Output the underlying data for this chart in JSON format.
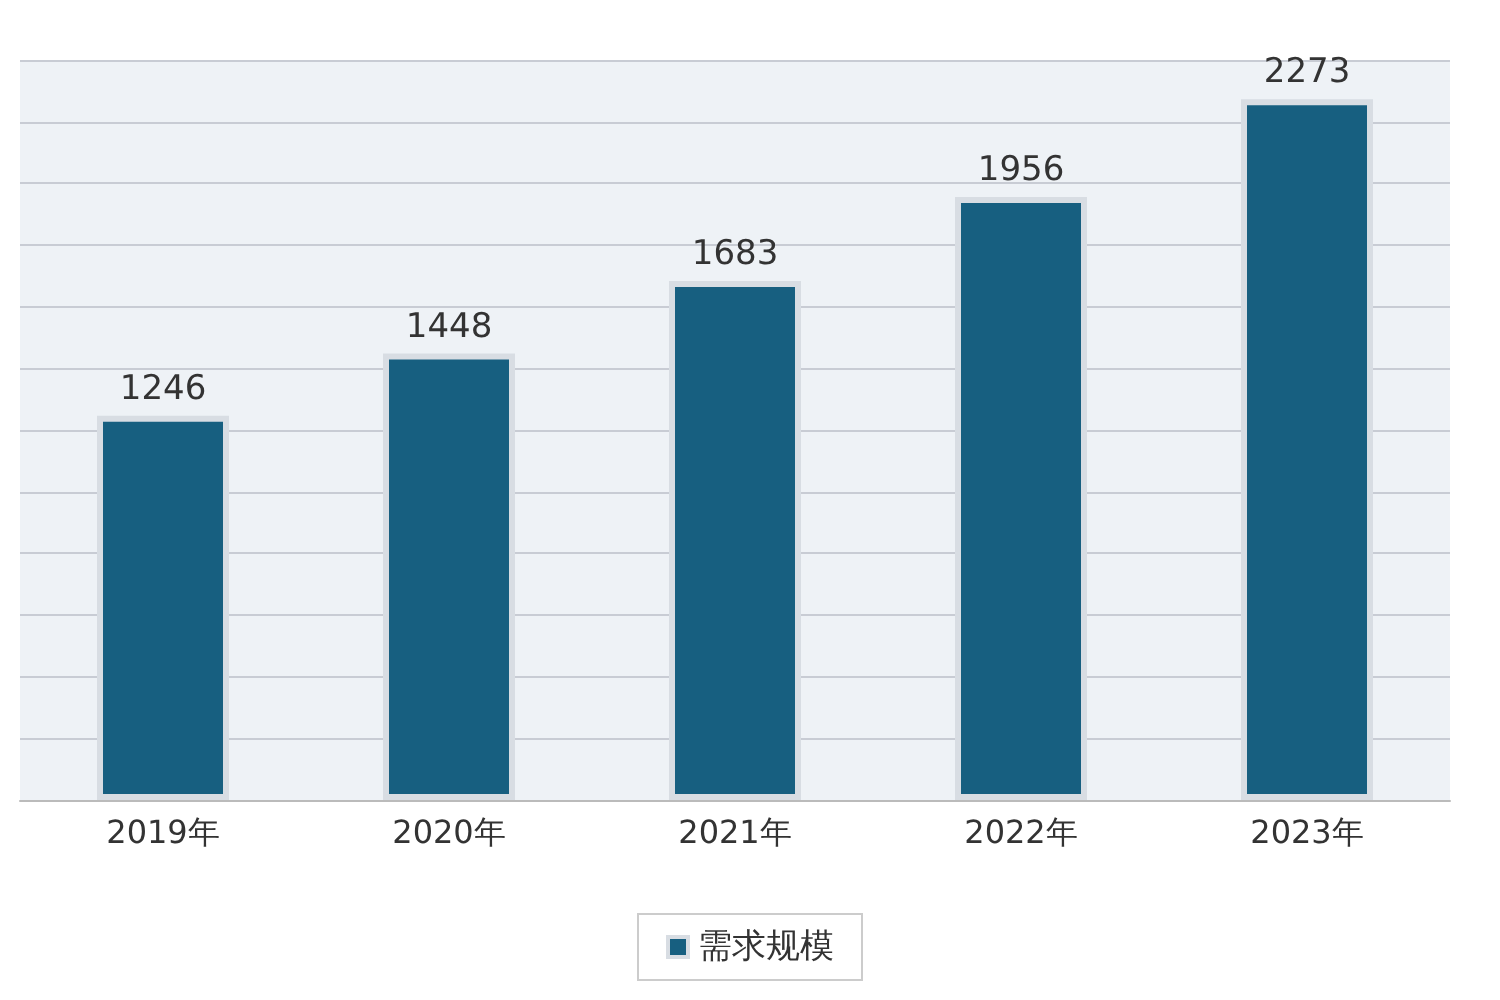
{
  "chart_data": {
    "type": "bar",
    "categories": [
      "2019年",
      "2020年",
      "2021年",
      "2022年",
      "2023年"
    ],
    "series": [
      {
        "name": "需求规模",
        "color": "#175f80",
        "values": [
          1246,
          1448,
          1683,
          1956,
          2273
        ]
      }
    ],
    "data_labels": true,
    "grid": "y",
    "legend": "bottom"
  }
}
